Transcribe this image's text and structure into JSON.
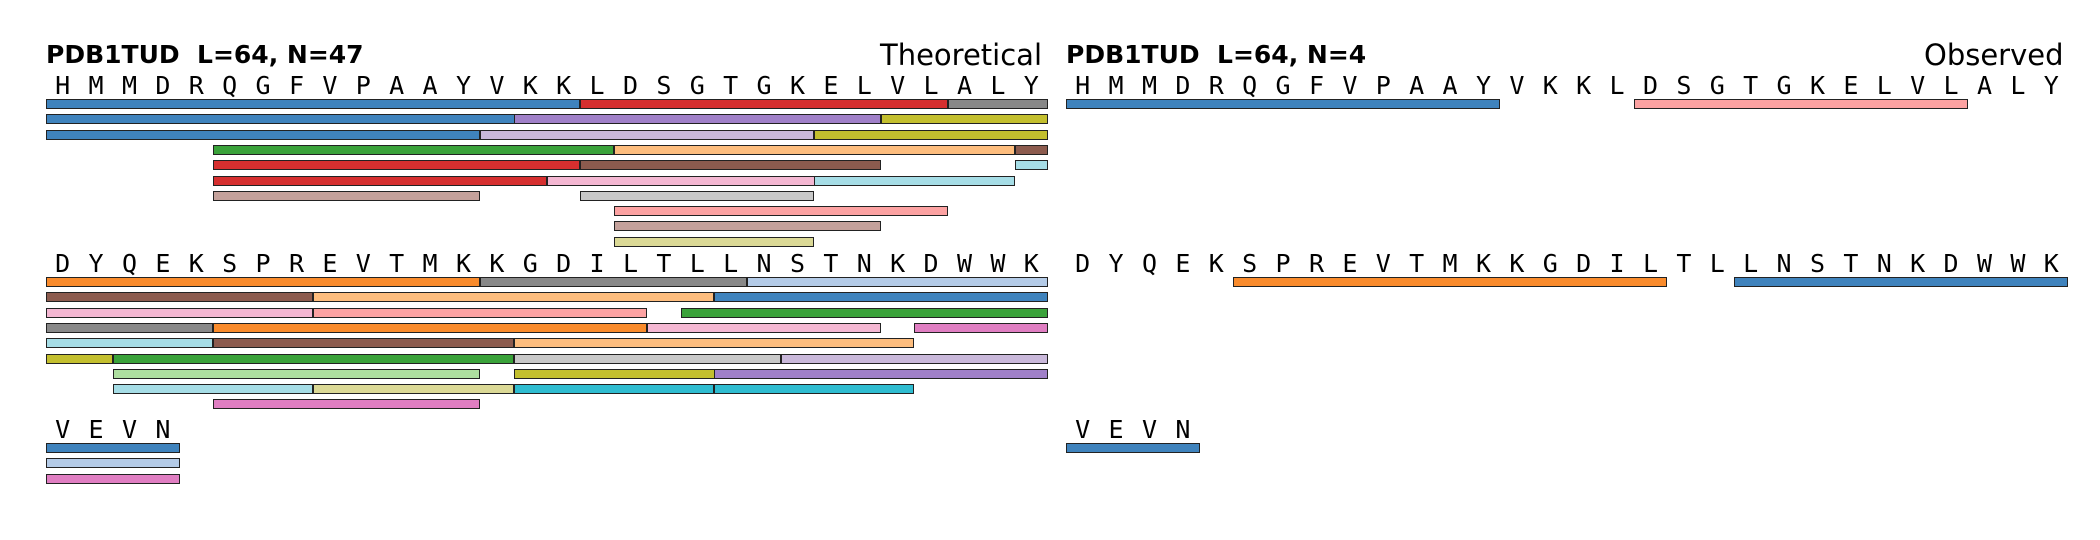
{
  "theoretical": {
    "title": "PDB1TUD  L=64, N=47",
    "label": "Theoretical",
    "sequence": "HMMDRQGFVPAAYVKKLDSGTGKELVLALYDYQEKSPREVTMKKGDILTLLNSTNKDWWKVEVN",
    "row_length": 30,
    "peptides": [
      {
        "start": 1,
        "end": 16,
        "track": 0,
        "color": "#3f83bd"
      },
      {
        "start": 1,
        "end": 15,
        "track": 1,
        "color": "#3f83bd"
      },
      {
        "start": 1,
        "end": 13,
        "track": 2,
        "color": "#3f83bd"
      },
      {
        "start": 6,
        "end": 16,
        "track": 4,
        "color": "#d62f2f"
      },
      {
        "start": 6,
        "end": 15,
        "track": 5,
        "color": "#d62f2f"
      },
      {
        "start": 6,
        "end": 13,
        "track": 6,
        "color": "#c4a19b"
      },
      {
        "start": 6,
        "end": 17,
        "track": 3,
        "color": "#3aa23a"
      },
      {
        "start": 14,
        "end": 23,
        "track": 2,
        "color": "#c9b8da"
      },
      {
        "start": 15,
        "end": 25,
        "track": 1,
        "color": "#a080c8"
      },
      {
        "start": 16,
        "end": 24,
        "track": 5,
        "color": "#f4b7d2"
      },
      {
        "start": 17,
        "end": 27,
        "track": 0,
        "color": "#d62f2f"
      },
      {
        "start": 17,
        "end": 25,
        "track": 4,
        "color": "#8c5b4e"
      },
      {
        "start": 17,
        "end": 23,
        "track": 6,
        "color": "#c8c8c8"
      },
      {
        "start": 18,
        "end": 29,
        "track": 3,
        "color": "#fdbd7e"
      },
      {
        "start": 18,
        "end": 27,
        "track": 7,
        "color": "#fca2a2"
      },
      {
        "start": 18,
        "end": 25,
        "track": 8,
        "color": "#c4a19b"
      },
      {
        "start": 18,
        "end": 23,
        "track": 9,
        "color": "#dbd996"
      },
      {
        "start": 24,
        "end": 30,
        "track": 2,
        "color": "#c3bf2e"
      },
      {
        "start": 24,
        "end": 29,
        "track": 5,
        "color": "#a6dde6"
      },
      {
        "start": 26,
        "end": 30,
        "track": 1,
        "color": "#c3bf2e"
      },
      {
        "start": 28,
        "end": 30,
        "track": 0,
        "color": "#888888"
      },
      {
        "start": 30,
        "end": 30,
        "track": 3,
        "color": "#8c5b4e"
      },
      {
        "start": 30,
        "end": 30,
        "track": 4,
        "color": "#a6dde6"
      },
      {
        "start": 31,
        "end": 43,
        "track": 0,
        "color": "#f98b2c"
      },
      {
        "start": 31,
        "end": 38,
        "track": 1,
        "color": "#8c5b4e"
      },
      {
        "start": 31,
        "end": 38,
        "track": 2,
        "color": "#f4b7d2"
      },
      {
        "start": 31,
        "end": 35,
        "track": 3,
        "color": "#888888"
      },
      {
        "start": 31,
        "end": 35,
        "track": 4,
        "color": "#a6dde6"
      },
      {
        "start": 31,
        "end": 32,
        "track": 5,
        "color": "#c3bf2e"
      },
      {
        "start": 33,
        "end": 44,
        "track": 5,
        "color": "#3aa23a"
      },
      {
        "start": 33,
        "end": 43,
        "track": 6,
        "color": "#aedfa0"
      },
      {
        "start": 33,
        "end": 38,
        "track": 7,
        "color": "#a6dde6"
      },
      {
        "start": 36,
        "end": 48,
        "track": 3,
        "color": "#f98b2c"
      },
      {
        "start": 36,
        "end": 44,
        "track": 4,
        "color": "#8c5b4e"
      },
      {
        "start": 36,
        "end": 43,
        "track": 8,
        "color": "#e07ec2"
      },
      {
        "start": 39,
        "end": 50,
        "track": 1,
        "color": "#fdbd7e"
      },
      {
        "start": 39,
        "end": 48,
        "track": 2,
        "color": "#fca2a2"
      },
      {
        "start": 39,
        "end": 44,
        "track": 7,
        "color": "#dbd996"
      },
      {
        "start": 44,
        "end": 51,
        "track": 0,
        "color": "#888888"
      },
      {
        "start": 45,
        "end": 52,
        "track": 5,
        "color": "#c8c8c8"
      },
      {
        "start": 45,
        "end": 56,
        "track": 4,
        "color": "#fdbd7e"
      },
      {
        "start": 45,
        "end": 51,
        "track": 6,
        "color": "#c3bf2e"
      },
      {
        "start": 45,
        "end": 50,
        "track": 7,
        "color": "#2fbcd0"
      },
      {
        "start": 49,
        "end": 55,
        "track": 3,
        "color": "#f4b7d2"
      },
      {
        "start": 50,
        "end": 60,
        "track": 2,
        "color": "#3aa23a"
      },
      {
        "start": 51,
        "end": 60,
        "track": 1,
        "color": "#3f83bd"
      },
      {
        "start": 51,
        "end": 56,
        "track": 7,
        "color": "#2fbcd0"
      },
      {
        "start": 51,
        "end": 60,
        "track": 6,
        "color": "#a080c8"
      },
      {
        "start": 52,
        "end": 60,
        "track": 0,
        "color": "#b4cbe7"
      },
      {
        "start": 53,
        "end": 60,
        "track": 5,
        "color": "#c9b8da"
      },
      {
        "start": 57,
        "end": 60,
        "track": 3,
        "color": "#e07ec2"
      },
      {
        "start": 61,
        "end": 64,
        "track": 0,
        "color": "#3f83bd"
      },
      {
        "start": 61,
        "end": 64,
        "track": 1,
        "color": "#b4cbe7"
      },
      {
        "start": 61,
        "end": 64,
        "track": 2,
        "color": "#e07ec2"
      }
    ]
  },
  "observed": {
    "title": "PDB1TUD  L=64, N=4",
    "label": "Observed",
    "sequence": "HMMDRQGFVPAAYVKKLDSGTGKELVLALYDYQEKSPREVTMKKGDILTLLNSTNKDWWKVEVN",
    "row_length": 30,
    "peptides": [
      {
        "start": 1,
        "end": 13,
        "track": 0,
        "color": "#3f83bd"
      },
      {
        "start": 18,
        "end": 27,
        "track": 0,
        "color": "#fca2a2"
      },
      {
        "start": 36,
        "end": 48,
        "track": 0,
        "color": "#f98b2c"
      },
      {
        "start": 51,
        "end": 60,
        "track": 0,
        "color": "#3f83bd"
      },
      {
        "start": 61,
        "end": 64,
        "track": 0,
        "color": "#3f83bd"
      }
    ]
  }
}
